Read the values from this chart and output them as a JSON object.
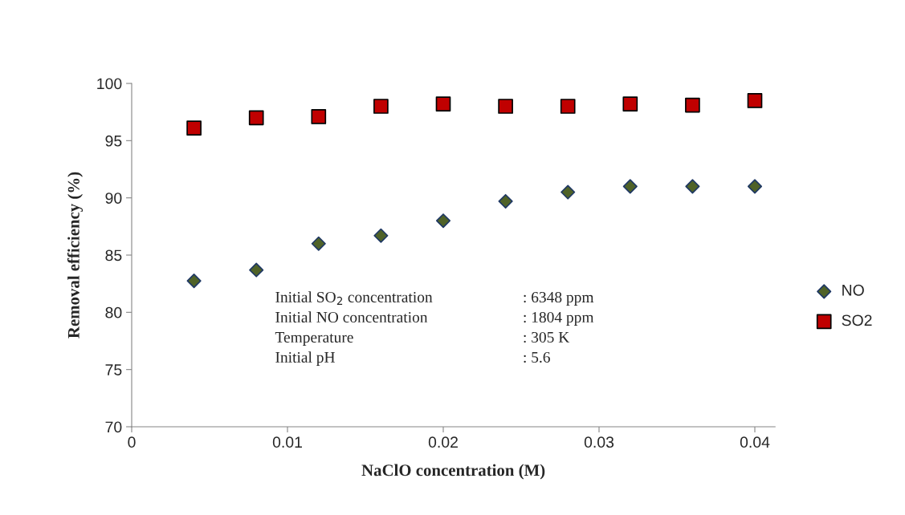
{
  "chart_data": {
    "type": "scatter",
    "xlabel": "NaClO concentration (M)",
    "ylabel": "Removal efficiency (%)",
    "x": [
      0.004,
      0.008,
      0.012,
      0.016,
      0.02,
      0.024,
      0.028,
      0.032,
      0.036,
      0.04
    ],
    "series": [
      {
        "name": "NO",
        "color": "#4f6228",
        "marker": "diamond",
        "values": [
          82.75,
          83.7,
          86.0,
          86.7,
          88.0,
          89.7,
          90.5,
          91.0,
          91.0,
          91.0
        ]
      },
      {
        "name": "SO2",
        "color": "#c00000",
        "marker": "square",
        "values": [
          96.1,
          97.0,
          97.1,
          98.0,
          98.2,
          98.0,
          98.0,
          98.2,
          98.1,
          98.5
        ]
      }
    ],
    "xlim": [
      0,
      0.0413
    ],
    "xticks": [
      0,
      0.01,
      0.02,
      0.03,
      0.04
    ],
    "ylim": [
      70,
      100
    ],
    "yticks": [
      70,
      75,
      80,
      85,
      90,
      95,
      100
    ],
    "grid": false,
    "legend": "right",
    "annotations": [
      "Initial SO$_{2}$ concentration",
      ": 6348 ppm",
      "Initial NO concentration",
      ": 1804 ppm",
      "Temperature",
      ": 305 K",
      "Initial pH",
      ": 5.6"
    ]
  }
}
